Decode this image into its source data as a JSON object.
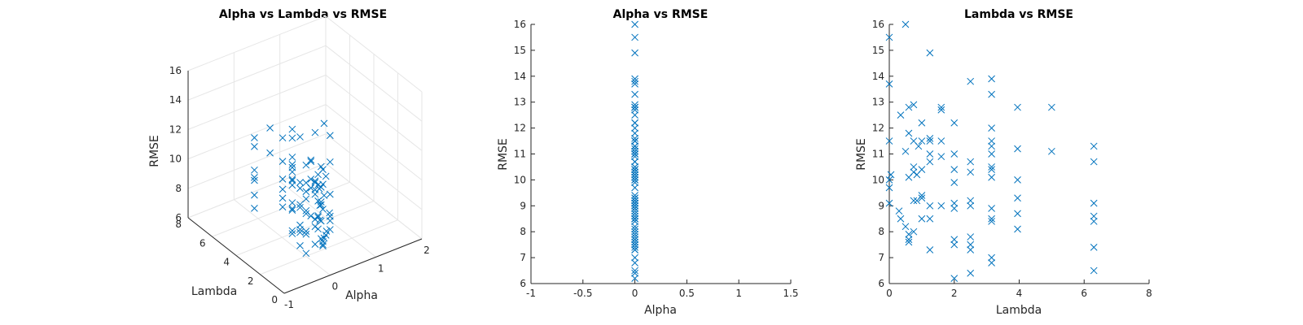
{
  "chart_data": [
    {
      "type": "scatter",
      "title": "Alpha vs Lambda vs RMSE",
      "xlabel": "Alpha",
      "ylabel": "Lambda",
      "zlabel": "RMSE",
      "xlim": [
        -1,
        2
      ],
      "ylim": [
        0,
        8
      ],
      "zlim": [
        6,
        16
      ],
      "xticks": [
        "-1",
        "0",
        "1",
        "2"
      ],
      "yticks": [
        "0",
        "2",
        "4",
        "6",
        "8"
      ],
      "zticks": [
        "6",
        "8",
        "10",
        "12",
        "14",
        "16"
      ],
      "grid": true,
      "marker": "x",
      "color": "#0072BD"
    },
    {
      "type": "scatter",
      "title": "Alpha vs RMSE",
      "xlabel": "Alpha",
      "ylabel": "RMSE",
      "xlim": [
        -1,
        1.5
      ],
      "ylim": [
        6,
        16
      ],
      "xticks": [
        "-1",
        "-0.5",
        "0",
        "0.5",
        "1",
        "1.5"
      ],
      "yticks": [
        "6",
        "7",
        "8",
        "9",
        "10",
        "11",
        "12",
        "13",
        "14",
        "15",
        "16"
      ],
      "grid": false,
      "marker": "x",
      "color": "#0072BD"
    },
    {
      "type": "scatter",
      "title": "Lambda vs RMSE",
      "xlabel": "Lambda",
      "ylabel": "RMSE",
      "xlim": [
        0,
        8
      ],
      "ylim": [
        6,
        16
      ],
      "xticks": [
        "0",
        "2",
        "4",
        "6",
        "8"
      ],
      "yticks": [
        "6",
        "7",
        "8",
        "9",
        "10",
        "11",
        "12",
        "13",
        "14",
        "15",
        "16"
      ],
      "grid": false,
      "marker": "x",
      "color": "#0072BD"
    }
  ],
  "points": {
    "alpha": 0,
    "lambda_rmse": [
      [
        0.0,
        15.5
      ],
      [
        0.0,
        13.7
      ],
      [
        0.0,
        11.5
      ],
      [
        0.0,
        10.0
      ],
      [
        0.0,
        9.7
      ],
      [
        0.0,
        9.1
      ],
      [
        0.05,
        10.2
      ],
      [
        0.3,
        8.8
      ],
      [
        0.35,
        8.5
      ],
      [
        0.35,
        12.5
      ],
      [
        0.5,
        8.2
      ],
      [
        0.5,
        11.1
      ],
      [
        0.5,
        16.0
      ],
      [
        0.6,
        7.6
      ],
      [
        0.6,
        7.7
      ],
      [
        0.6,
        7.9
      ],
      [
        0.6,
        10.1
      ],
      [
        0.6,
        11.8
      ],
      [
        0.6,
        12.8
      ],
      [
        0.75,
        8.0
      ],
      [
        0.75,
        9.2
      ],
      [
        0.75,
        10.3
      ],
      [
        0.75,
        10.5
      ],
      [
        0.75,
        11.5
      ],
      [
        0.75,
        12.9
      ],
      [
        0.85,
        9.2
      ],
      [
        0.85,
        10.2
      ],
      [
        0.9,
        11.3
      ],
      [
        1.0,
        8.5
      ],
      [
        1.0,
        9.3
      ],
      [
        1.0,
        9.4
      ],
      [
        1.0,
        10.4
      ],
      [
        1.0,
        11.5
      ],
      [
        1.0,
        12.2
      ],
      [
        1.25,
        7.3
      ],
      [
        1.25,
        8.5
      ],
      [
        1.25,
        9.0
      ],
      [
        1.25,
        10.7
      ],
      [
        1.25,
        11.0
      ],
      [
        1.25,
        11.5
      ],
      [
        1.25,
        11.6
      ],
      [
        1.25,
        14.9
      ],
      [
        1.6,
        9.0
      ],
      [
        1.6,
        10.9
      ],
      [
        1.6,
        11.5
      ],
      [
        1.6,
        12.7
      ],
      [
        1.6,
        12.8
      ],
      [
        2.0,
        6.2
      ],
      [
        2.0,
        7.5
      ],
      [
        2.0,
        7.7
      ],
      [
        2.0,
        8.9
      ],
      [
        2.0,
        9.1
      ],
      [
        2.0,
        9.9
      ],
      [
        2.0,
        10.4
      ],
      [
        2.0,
        11.0
      ],
      [
        2.0,
        12.2
      ],
      [
        2.5,
        6.4
      ],
      [
        2.5,
        7.3
      ],
      [
        2.5,
        7.5
      ],
      [
        2.5,
        7.8
      ],
      [
        2.5,
        9.0
      ],
      [
        2.5,
        9.2
      ],
      [
        2.5,
        10.3
      ],
      [
        2.5,
        10.7
      ],
      [
        2.5,
        13.8
      ],
      [
        3.15,
        6.8
      ],
      [
        3.15,
        7.0
      ],
      [
        3.15,
        8.4
      ],
      [
        3.15,
        8.5
      ],
      [
        3.15,
        8.9
      ],
      [
        3.15,
        10.1
      ],
      [
        3.15,
        10.4
      ],
      [
        3.15,
        10.5
      ],
      [
        3.15,
        11.0
      ],
      [
        3.15,
        11.3
      ],
      [
        3.15,
        11.5
      ],
      [
        3.15,
        12.0
      ],
      [
        3.15,
        13.3
      ],
      [
        3.15,
        13.9
      ],
      [
        3.95,
        8.1
      ],
      [
        3.95,
        8.7
      ],
      [
        3.95,
        9.3
      ],
      [
        3.95,
        10.0
      ],
      [
        3.95,
        11.2
      ],
      [
        3.95,
        12.8
      ],
      [
        5.0,
        11.1
      ],
      [
        5.0,
        12.8
      ],
      [
        6.3,
        6.5
      ],
      [
        6.3,
        7.4
      ],
      [
        6.3,
        8.4
      ],
      [
        6.3,
        8.6
      ],
      [
        6.3,
        9.1
      ],
      [
        6.3,
        10.7
      ],
      [
        6.3,
        11.3
      ]
    ]
  }
}
